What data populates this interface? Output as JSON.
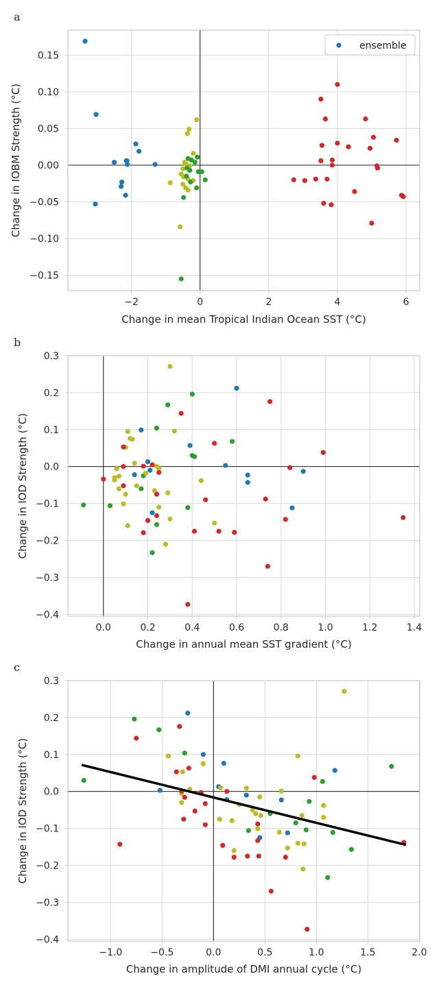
{
  "colors": {
    "blue": "#1f77b4",
    "green": "#2ca02c",
    "olive": "#bcbd22",
    "red": "#d62728",
    "grid": "#d9d9d9",
    "axis": "#cccccc",
    "zero": "#000000",
    "regression": "#000000"
  },
  "chart_data": [
    {
      "panel": "a",
      "type": "scatter",
      "xlabel": "Change in mean Tropical Indian Ocean SST (°C)",
      "ylabel": "Change in IOBM Strength (°C)",
      "xlim": [
        -3.85,
        6.4
      ],
      "ylim": [
        -0.171,
        0.184
      ],
      "xticks": [
        -2,
        0,
        2,
        4,
        6
      ],
      "xtick_labels": [
        "−2",
        "0",
        "2",
        "4",
        "6"
      ],
      "yticks": [
        -0.15,
        -0.1,
        -0.05,
        0.0,
        0.05,
        0.1,
        0.15
      ],
      "ytick_labels": [
        "−0.15",
        "−0.10",
        "−0.05",
        "0.00",
        "0.05",
        "0.10",
        "0.15"
      ],
      "grid": true,
      "legend": {
        "placement": "top-right",
        "entries": [
          {
            "label": "ensemble",
            "color_key": "blue"
          }
        ]
      },
      "groups": [
        {
          "color_key": "blue",
          "points": [
            [
              -3.35,
              0.169
            ],
            [
              -3.03,
              0.069
            ],
            [
              -3.05,
              -0.053
            ],
            [
              -2.5,
              0.004
            ],
            [
              -2.28,
              -0.023
            ],
            [
              -2.3,
              -0.029
            ],
            [
              -2.15,
              0.006
            ],
            [
              -2.13,
              0.006
            ],
            [
              -2.12,
              0.001
            ],
            [
              -2.17,
              -0.041
            ],
            [
              -1.87,
              0.029
            ],
            [
              -1.78,
              0.019
            ],
            [
              -1.31,
              0.001
            ]
          ]
        },
        {
          "color_key": "olive",
          "points": [
            [
              -0.1,
              0.062
            ],
            [
              -0.32,
              0.049
            ],
            [
              -0.37,
              0.043
            ],
            [
              -0.87,
              -0.024
            ],
            [
              -0.58,
              -0.084
            ],
            [
              -0.2,
              0.016
            ],
            [
              -0.45,
              0.004
            ],
            [
              -0.4,
              0.001
            ],
            [
              -0.3,
              -0.001
            ],
            [
              -0.5,
              -0.005
            ],
            [
              -0.55,
              -0.012
            ],
            [
              -0.48,
              -0.016
            ],
            [
              -0.35,
              -0.019
            ],
            [
              -0.2,
              -0.021
            ],
            [
              -0.5,
              -0.026
            ],
            [
              -0.42,
              -0.031
            ],
            [
              -0.35,
              -0.034
            ]
          ]
        },
        {
          "color_key": "green",
          "points": [
            [
              -0.35,
              0.009
            ],
            [
              -0.25,
              0.007
            ],
            [
              -0.08,
              0.011
            ],
            [
              -0.15,
              0.004
            ],
            [
              -0.38,
              -0.004
            ],
            [
              -0.3,
              -0.007
            ],
            [
              -0.05,
              -0.009
            ],
            [
              0.05,
              -0.009
            ],
            [
              -0.4,
              -0.015
            ],
            [
              0.15,
              -0.02
            ],
            [
              -0.28,
              -0.023
            ],
            [
              -0.1,
              -0.031
            ],
            [
              -0.48,
              -0.044
            ],
            [
              -0.55,
              -0.155
            ]
          ]
        },
        {
          "color_key": "red",
          "points": [
            [
              4.0,
              0.11
            ],
            [
              3.52,
              0.09
            ],
            [
              3.65,
              0.063
            ],
            [
              4.82,
              0.063
            ],
            [
              5.05,
              0.038
            ],
            [
              5.72,
              0.034
            ],
            [
              4.0,
              0.03
            ],
            [
              3.55,
              0.027
            ],
            [
              4.32,
              0.025
            ],
            [
              4.95,
              0.023
            ],
            [
              3.85,
              0.007
            ],
            [
              3.52,
              0.006
            ],
            [
              5.15,
              -0.001
            ],
            [
              3.85,
              0.0
            ],
            [
              5.17,
              -0.004
            ],
            [
              2.73,
              -0.02
            ],
            [
              3.05,
              -0.021
            ],
            [
              3.37,
              -0.019
            ],
            [
              3.7,
              -0.019
            ],
            [
              4.5,
              -0.036
            ],
            [
              5.87,
              -0.041
            ],
            [
              5.92,
              -0.043
            ],
            [
              3.6,
              -0.052
            ],
            [
              3.82,
              -0.054
            ],
            [
              5.0,
              -0.079
            ]
          ]
        }
      ]
    },
    {
      "panel": "b",
      "type": "scatter",
      "xlabel": "Change in annual mean SST gradient (°C)",
      "ylabel": "Change in IOD Strength (°C)",
      "xlim": [
        -0.16,
        1.425
      ],
      "ylim": [
        -0.405,
        0.3
      ],
      "xticks": [
        0.0,
        0.2,
        0.4,
        0.6,
        0.8,
        1.0,
        1.2,
        1.4
      ],
      "xtick_labels": [
        "0.0",
        "0.2",
        "0.4",
        "0.6",
        "0.8",
        "1.0",
        "1.2",
        "1.4"
      ],
      "yticks": [
        -0.4,
        -0.3,
        -0.2,
        -0.1,
        0.0,
        0.1,
        0.2,
        0.3
      ],
      "ytick_labels": [
        "−0.4",
        "−0.3",
        "−0.2",
        "−0.1",
        "0.0",
        "0.1",
        "0.2",
        "0.3"
      ],
      "grid": true,
      "groups": [
        {
          "color_key": "blue",
          "points": [
            [
              0.6,
              0.212
            ],
            [
              0.17,
              0.099
            ],
            [
              0.39,
              0.057
            ],
            [
              0.55,
              0.003
            ],
            [
              0.2,
              0.013
            ],
            [
              0.14,
              -0.022
            ],
            [
              0.65,
              -0.023
            ],
            [
              0.9,
              -0.013
            ],
            [
              0.65,
              -0.043
            ],
            [
              0.21,
              -0.01
            ],
            [
              0.22,
              -0.125
            ],
            [
              0.85,
              -0.112
            ]
          ]
        },
        {
          "color_key": "green",
          "points": [
            [
              0.4,
              0.196
            ],
            [
              0.29,
              0.167
            ],
            [
              0.24,
              0.104
            ],
            [
              0.58,
              0.068
            ],
            [
              0.4,
              0.03
            ],
            [
              0.41,
              0.027
            ],
            [
              0.18,
              -0.025
            ],
            [
              0.17,
              -0.06
            ],
            [
              -0.09,
              -0.104
            ],
            [
              0.03,
              -0.106
            ],
            [
              0.38,
              -0.111
            ],
            [
              0.24,
              -0.157
            ],
            [
              0.22,
              -0.233
            ]
          ]
        },
        {
          "color_key": "olive",
          "points": [
            [
              0.3,
              0.271
            ],
            [
              0.32,
              0.096
            ],
            [
              0.11,
              0.095
            ],
            [
              0.12,
              0.076
            ],
            [
              0.13,
              0.074
            ],
            [
              0.1,
              0.052
            ],
            [
              0.14,
              0.009
            ],
            [
              0.24,
              0.001
            ],
            [
              0.25,
              -0.005
            ],
            [
              0.06,
              -0.006
            ],
            [
              0.07,
              -0.026
            ],
            [
              0.05,
              -0.03
            ],
            [
              0.05,
              -0.036
            ],
            [
              0.19,
              -0.018
            ],
            [
              0.44,
              -0.038
            ],
            [
              0.15,
              -0.052
            ],
            [
              0.07,
              -0.06
            ],
            [
              0.23,
              -0.065
            ],
            [
              0.29,
              -0.071
            ],
            [
              0.1,
              -0.075
            ],
            [
              0.09,
              -0.101
            ],
            [
              0.25,
              -0.11
            ],
            [
              0.3,
              -0.142
            ],
            [
              0.5,
              -0.153
            ],
            [
              0.11,
              -0.16
            ],
            [
              0.28,
              -0.21
            ]
          ]
        },
        {
          "color_key": "red",
          "points": [
            [
              0.75,
              0.176
            ],
            [
              0.35,
              0.144
            ],
            [
              0.5,
              0.063
            ],
            [
              0.09,
              0.053
            ],
            [
              0.99,
              0.038
            ],
            [
              0.09,
              0.0
            ],
            [
              0.18,
              0.001
            ],
            [
              0.22,
              0.005
            ],
            [
              0.84,
              -0.003
            ],
            [
              0.25,
              -0.016
            ],
            [
              0.0,
              -0.034
            ],
            [
              0.09,
              -0.052
            ],
            [
              0.24,
              -0.075
            ],
            [
              0.46,
              -0.09
            ],
            [
              0.73,
              -0.088
            ],
            [
              0.24,
              -0.133
            ],
            [
              0.2,
              -0.146
            ],
            [
              0.82,
              -0.143
            ],
            [
              1.35,
              -0.138
            ],
            [
              0.18,
              -0.179
            ],
            [
              0.41,
              -0.175
            ],
            [
              0.52,
              -0.175
            ],
            [
              0.59,
              -0.178
            ],
            [
              0.74,
              -0.27
            ],
            [
              0.38,
              -0.373
            ]
          ]
        }
      ]
    },
    {
      "panel": "c",
      "type": "scatter",
      "xlabel": "Change in amplitude of DMI annual cycle (°C)",
      "ylabel": "Change in IOD Strength (°C)",
      "xlim": [
        -1.415,
        2.005
      ],
      "ylim": [
        -0.405,
        0.3
      ],
      "xticks": [
        -1.0,
        -0.5,
        0.0,
        0.5,
        1.0,
        1.5,
        2.0
      ],
      "xtick_labels": [
        "−1.0",
        "−0.5",
        "0.0",
        "0.5",
        "1.0",
        "1.5",
        "2.0"
      ],
      "yticks": [
        -0.4,
        -0.3,
        -0.2,
        -0.1,
        0.0,
        0.1,
        0.2,
        0.3
      ],
      "ytick_labels": [
        "−0.4",
        "−0.3",
        "−0.2",
        "−0.1",
        "0.0",
        "0.1",
        "0.2",
        "0.3"
      ],
      "grid": true,
      "regression": {
        "x": [
          -1.27,
          1.86
        ],
        "y": [
          0.071,
          -0.144
        ]
      },
      "groups": [
        {
          "color_key": "blue",
          "points": [
            [
              -0.25,
              0.212
            ],
            [
              -0.1,
              0.1
            ],
            [
              0.1,
              0.076
            ],
            [
              0.05,
              0.013
            ],
            [
              -0.52,
              0.003
            ],
            [
              0.13,
              -0.022
            ],
            [
              0.32,
              -0.01
            ],
            [
              0.66,
              -0.023
            ],
            [
              1.18,
              0.057
            ],
            [
              0.45,
              -0.125
            ],
            [
              0.72,
              -0.112
            ]
          ]
        },
        {
          "color_key": "green",
          "points": [
            [
              -0.77,
              0.196
            ],
            [
              -0.53,
              0.167
            ],
            [
              -0.28,
              0.104
            ],
            [
              -1.26,
              0.03
            ],
            [
              1.73,
              0.068
            ],
            [
              1.06,
              0.027
            ],
            [
              0.93,
              -0.027
            ],
            [
              0.55,
              -0.06
            ],
            [
              0.8,
              -0.085
            ],
            [
              0.34,
              -0.106
            ],
            [
              0.9,
              -0.104
            ],
            [
              1.16,
              -0.111
            ],
            [
              1.34,
              -0.157
            ],
            [
              1.11,
              -0.233
            ]
          ]
        },
        {
          "color_key": "olive",
          "points": [
            [
              1.27,
              0.271
            ],
            [
              -0.44,
              0.096
            ],
            [
              0.82,
              0.096
            ],
            [
              -0.1,
              0.075
            ],
            [
              -0.3,
              0.053
            ],
            [
              0.32,
              0.009
            ],
            [
              -0.23,
              0.006
            ],
            [
              0.07,
              0.01
            ],
            [
              0.66,
              0.001
            ],
            [
              -0.31,
              -0.006
            ],
            [
              0.45,
              -0.015
            ],
            [
              -0.31,
              -0.03
            ],
            [
              0.25,
              -0.036
            ],
            [
              0.38,
              -0.05
            ],
            [
              0.41,
              -0.06
            ],
            [
              0.46,
              -0.065
            ],
            [
              1.07,
              -0.038
            ],
            [
              0.86,
              -0.065
            ],
            [
              1.07,
              -0.07
            ],
            [
              0.06,
              -0.075
            ],
            [
              0.18,
              -0.079
            ],
            [
              0.43,
              -0.101
            ],
            [
              0.64,
              -0.11
            ],
            [
              0.82,
              -0.14
            ],
            [
              0.88,
              -0.142
            ],
            [
              0.72,
              -0.153
            ],
            [
              0.2,
              -0.16
            ],
            [
              0.87,
              -0.21
            ]
          ]
        },
        {
          "color_key": "red",
          "points": [
            [
              -0.33,
              0.176
            ],
            [
              -0.75,
              0.144
            ],
            [
              -0.24,
              0.063
            ],
            [
              -0.36,
              0.053
            ],
            [
              0.98,
              0.038
            ],
            [
              0.13,
              0.0
            ],
            [
              -0.31,
              0.001
            ],
            [
              -0.12,
              -0.003
            ],
            [
              -0.28,
              -0.016
            ],
            [
              -0.08,
              -0.033
            ],
            [
              -0.18,
              -0.053
            ],
            [
              0.43,
              -0.088
            ],
            [
              -0.08,
              -0.09
            ],
            [
              -0.29,
              -0.075
            ],
            [
              0.09,
              -0.146
            ],
            [
              -0.91,
              -0.143
            ],
            [
              1.85,
              -0.138
            ],
            [
              0.43,
              -0.133
            ],
            [
              0.2,
              -0.178
            ],
            [
              0.33,
              -0.175
            ],
            [
              0.44,
              -0.175
            ],
            [
              0.7,
              -0.178
            ],
            [
              0.56,
              -0.27
            ],
            [
              0.91,
              -0.373
            ]
          ]
        }
      ]
    }
  ]
}
